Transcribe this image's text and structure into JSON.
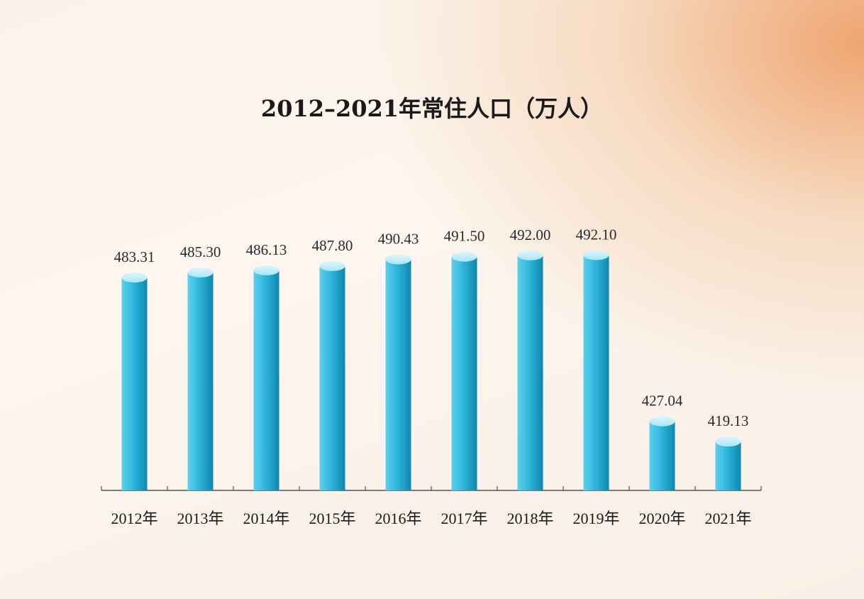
{
  "chart_data": {
    "type": "bar",
    "title": "2012–2021年常住人口（万人）",
    "categories": [
      "2012年",
      "2013年",
      "2014年",
      "2015年",
      "2016年",
      "2017年",
      "2018年",
      "2019年",
      "2020年",
      "2021年"
    ],
    "values": [
      483.31,
      485.3,
      486.13,
      487.8,
      490.43,
      491.5,
      492.0,
      492.1,
      427.04,
      419.13
    ],
    "value_labels": [
      "483.31",
      "485.30",
      "486.13",
      "487.80",
      "490.43",
      "491.50",
      "492.00",
      "492.10",
      "427.04",
      "419.13"
    ],
    "xlabel": "",
    "ylabel": "",
    "ylim": [
      400,
      500
    ],
    "grid": false,
    "colors": {
      "bar_dark": "#0e87ad",
      "bar_light": "#5cd0ee",
      "bar_top": "#a9e6f7"
    }
  }
}
